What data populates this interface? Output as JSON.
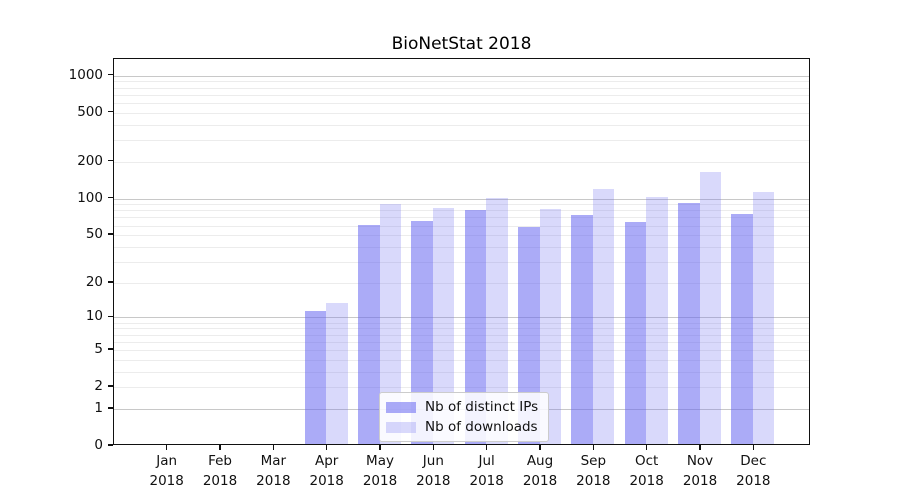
{
  "chart": {
    "title": "BioNetStat 2018",
    "legend": {
      "items": [
        {
          "label": "Nb of distinct IPs",
          "color": "rgba(102,102,240,0.55)"
        },
        {
          "label": "Nb of downloads",
          "color": "rgba(102,102,240,0.25)"
        }
      ]
    }
  },
  "chart_data": {
    "type": "bar",
    "title": "BioNetStat 2018",
    "categories": [
      "Jan",
      "Feb",
      "Mar",
      "Apr",
      "May",
      "Jun",
      "Jul",
      "Aug",
      "Sep",
      "Oct",
      "Nov",
      "Dec"
    ],
    "year_label": "2018",
    "series": [
      {
        "name": "Nb of distinct IPs",
        "color_rgba": "rgba(102,102,240,0.55)",
        "values": [
          0,
          0,
          0,
          11,
          59,
          63,
          78,
          56,
          71,
          62,
          88,
          72
        ]
      },
      {
        "name": "Nb of downloads",
        "color_rgba": "rgba(102,102,240,0.25)",
        "values": [
          0,
          0,
          0,
          13,
          87,
          81,
          97,
          79,
          115,
          99,
          160,
          110
        ]
      }
    ],
    "yscale": "log1p",
    "yticks": [
      0,
      1,
      2,
      5,
      10,
      20,
      50,
      100,
      200,
      500,
      1000
    ],
    "yticks_major_grid": [
      1,
      10,
      100,
      1000
    ],
    "yticks_minor_grid": [
      3,
      4,
      6,
      7,
      8,
      9,
      30,
      40,
      60,
      70,
      80,
      90,
      300,
      400,
      600,
      700,
      800,
      900
    ],
    "ylim": [
      0,
      1360
    ],
    "grid": true,
    "legend_position": "lower center inside",
    "colors": {
      "distinct_ips_hex": "#a8a8f6",
      "downloads_hex": "#d9d9fa",
      "grid_major": "#c8c8c8",
      "grid_minor": "#ececec"
    }
  }
}
